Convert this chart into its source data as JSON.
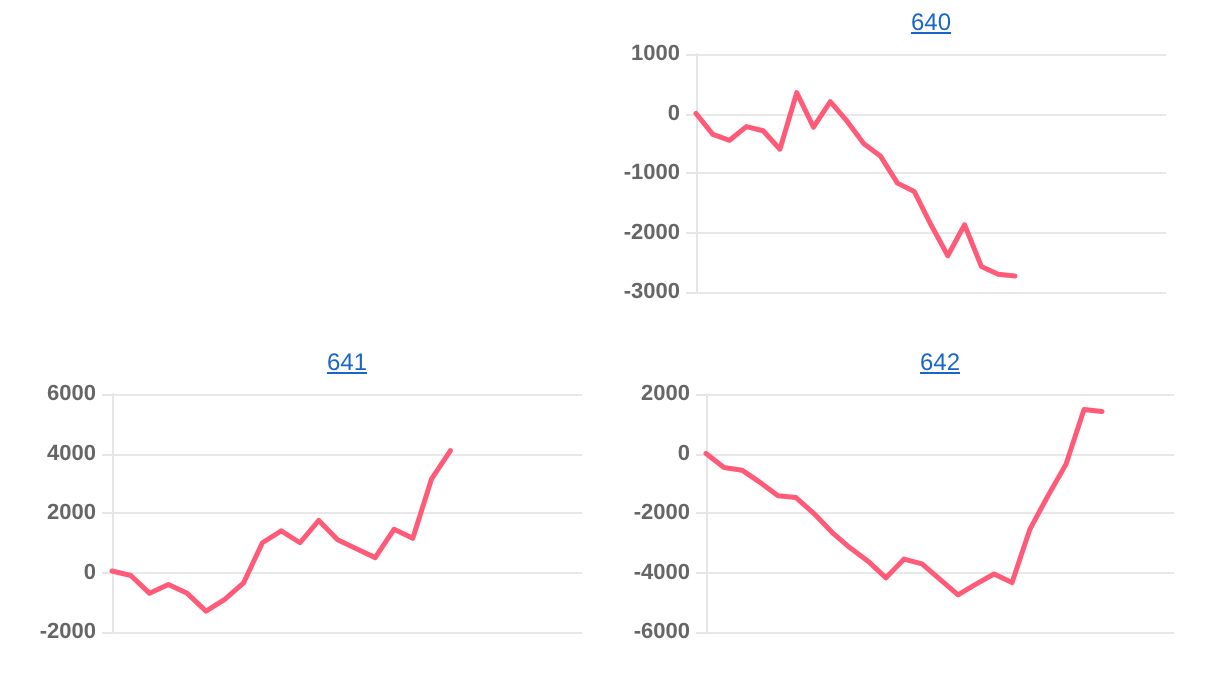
{
  "chart_data": [
    {
      "type": "line",
      "title": "640",
      "categories": [
        null,
        null,
        null,
        null,
        null,
        null,
        null,
        null,
        null,
        null,
        null,
        null,
        null,
        null,
        null,
        null,
        null,
        null,
        null,
        null,
        null,
        null,
        null,
        null,
        null,
        null,
        null,
        null,
        null
      ],
      "series": [
        {
          "color": "#ff5a78",
          "values": [
            0,
            -350,
            -450,
            -220,
            -290,
            -600,
            350,
            -230,
            200,
            -130,
            -510,
            -720,
            -1170,
            -1310,
            -1870,
            -2390,
            -1870,
            -2570,
            -2700,
            -2730,
            null,
            null,
            null,
            null,
            null,
            null,
            null,
            null,
            null
          ]
        }
      ],
      "ylim": [
        -3000,
        1000
      ],
      "yticks": [
        -3000,
        -2000,
        -1000,
        0,
        1000
      ],
      "grid": "y",
      "tick_labels": "y",
      "marker": "none"
    },
    {
      "type": "line",
      "title": "641",
      "categories": [
        null,
        null,
        null,
        null,
        null,
        null,
        null,
        null,
        null,
        null,
        null,
        null,
        null,
        null,
        null,
        null,
        null,
        null,
        null,
        null,
        null,
        null,
        null,
        null,
        null,
        null
      ],
      "series": [
        {
          "color": "#ff5a78",
          "values": [
            50,
            -100,
            -700,
            -400,
            -700,
            -1300,
            -900,
            -350,
            1000,
            1400,
            1000,
            1750,
            1100,
            800,
            500,
            1450,
            1150,
            3150,
            4100,
            null,
            null,
            null,
            null,
            null,
            null,
            null
          ]
        }
      ],
      "ylim": [
        -2000,
        6000
      ],
      "yticks": [
        -2000,
        0,
        2000,
        4000,
        6000
      ],
      "grid": "y",
      "tick_labels": "y",
      "marker": "none"
    },
    {
      "type": "line",
      "title": "642",
      "categories": [
        null,
        null,
        null,
        null,
        null,
        null,
        null,
        null,
        null,
        null,
        null,
        null,
        null,
        null,
        null,
        null,
        null,
        null,
        null,
        null,
        null,
        null,
        null,
        null,
        null,
        null,
        null
      ],
      "series": [
        {
          "color": "#ff5a78",
          "values": [
            0,
            -470,
            -560,
            -970,
            -1420,
            -1480,
            -2020,
            -2650,
            -3170,
            -3620,
            -4180,
            -3550,
            -3710,
            -4230,
            -4750,
            -4390,
            -4050,
            -4340,
            -2540,
            -1420,
            -360,
            1480,
            1410,
            null,
            null,
            null,
            null
          ]
        }
      ],
      "ylim": [
        -6000,
        2000
      ],
      "yticks": [
        -6000,
        -4000,
        -2000,
        0,
        2000
      ],
      "grid": "y",
      "tick_labels": "y",
      "marker": "none"
    }
  ]
}
